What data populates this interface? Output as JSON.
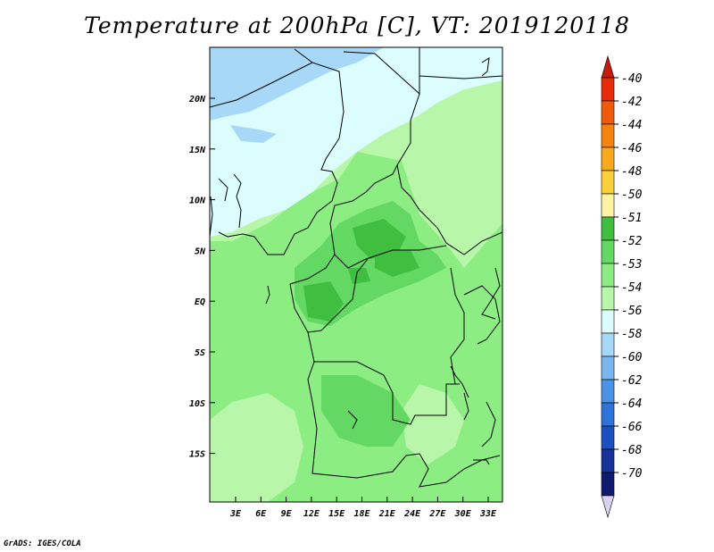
{
  "title": "Temperature at 200hPa [C], VT: 2019120118",
  "credit": "GrADS: IGES/COLA",
  "lat_labels": [
    "20N",
    "15N",
    "10N",
    "5N",
    "EQ",
    "5S",
    "10S",
    "15S"
  ],
  "lon_labels": [
    "3E",
    "6E",
    "9E",
    "12E",
    "15E",
    "18E",
    "21E",
    "24E",
    "27E",
    "30E",
    "33E"
  ],
  "colorbar": {
    "labels": [
      "-40",
      "-42",
      "-44",
      "-46",
      "-48",
      "-50",
      "-51",
      "-52",
      "-53",
      "-54",
      "-56",
      "-58",
      "-60",
      "-62",
      "-64",
      "-66",
      "-68",
      "-70"
    ],
    "colors": [
      "#e62a0a",
      "#f05a0c",
      "#f7830f",
      "#faa91d",
      "#fbd03a",
      "#fdf3a3",
      "#3fbe3f",
      "#63d862",
      "#8ced83",
      "#b8f6aa",
      "#dbfdfd",
      "#a7d8f8",
      "#7ab6ef",
      "#4b93e6",
      "#2e73d8",
      "#1c4fc0",
      "#15329b",
      "#0d1a6e"
    ],
    "top_arrow_color": "#c41a0a",
    "bottom_arrow_color": "#d9d3f0"
  },
  "fields": {
    "ocean_base": "#8ced83",
    "land_base": "#b8f6aa",
    "sahara": "#dbfdfd",
    "north_cold": "#a7d8f8",
    "core_warm": "#63d862",
    "hot_core": "#3fbe3f"
  }
}
